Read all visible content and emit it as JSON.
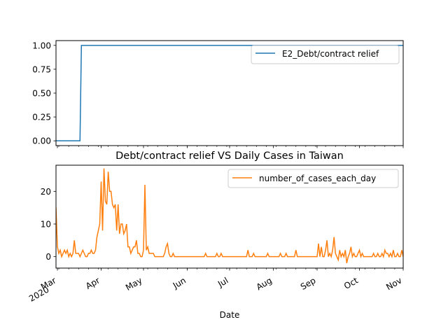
{
  "chart_data": [
    {
      "type": "line",
      "title": "",
      "xlabel": "",
      "ylabel": "",
      "ylim": [
        -0.05,
        1.05
      ],
      "yticks": [
        0.0,
        0.25,
        0.5,
        0.75,
        1.0
      ],
      "ytick_labels": [
        "0.00",
        "0.25",
        "0.50",
        "0.75",
        "1.00"
      ],
      "xlim": [
        "2020-02-29",
        "2020-11-01"
      ],
      "grid": false,
      "legend_position": "upper-right",
      "series": [
        {
          "name": "E2_Debt/contract relief",
          "color": "#1f77b4",
          "x": [
            "2020-02-29",
            "2020-03-17",
            "2020-03-18",
            "2020-11-01"
          ],
          "y": [
            0,
            0,
            1,
            1
          ]
        }
      ]
    },
    {
      "type": "line",
      "title": "Debt/contract relief VS Daily Cases in Taiwan",
      "xlabel": "Date",
      "ylabel": "",
      "ylim": [
        -3.5,
        28
      ],
      "yticks": [
        0,
        10,
        20
      ],
      "ytick_labels": [
        "0",
        "10",
        "20"
      ],
      "xlim": [
        "2020-02-29",
        "2020-11-01"
      ],
      "xticks": [
        "2020-03-01",
        "2020-04-01",
        "2020-05-01",
        "2020-06-01",
        "2020-07-01",
        "2020-08-01",
        "2020-09-01",
        "2020-10-01",
        "2020-11-01"
      ],
      "xtick_labels": [
        "Mar\n2020",
        "Apr",
        "May",
        "Jun",
        "Jul",
        "Aug",
        "Sep",
        "Oct",
        "Nov"
      ],
      "grid": false,
      "legend_position": "upper-right",
      "series": [
        {
          "name": "number_of_cases_each_day",
          "color": "#ff7f0e",
          "start_date": "2020-02-29",
          "values": [
            15,
            3,
            1,
            2,
            0,
            1,
            2,
            1,
            2,
            0,
            1,
            0,
            1,
            5,
            1,
            1,
            1,
            0,
            1,
            2,
            1,
            0,
            0,
            1,
            1,
            2,
            1,
            1,
            2,
            6,
            8,
            10,
            23,
            8,
            27,
            17,
            16,
            26,
            20,
            20,
            16,
            15,
            16,
            8,
            16,
            7,
            10,
            10,
            7,
            8,
            10,
            3,
            3,
            1,
            2,
            3,
            3,
            5,
            1,
            1,
            0,
            0,
            2,
            22,
            2,
            3,
            1,
            1,
            1,
            1,
            0,
            0,
            0,
            0,
            0,
            0,
            0,
            1,
            3,
            4,
            1,
            0,
            0,
            1,
            0,
            0,
            0,
            0,
            0,
            0,
            0,
            0,
            0,
            0,
            0,
            0,
            0,
            0,
            0,
            0,
            0,
            0,
            0,
            0,
            0,
            0,
            1,
            0,
            0,
            0,
            0,
            0,
            0,
            0,
            1,
            0,
            0,
            1,
            0,
            0,
            0,
            0,
            0,
            0,
            0,
            0,
            0,
            0,
            0,
            0,
            0,
            0,
            0,
            0,
            0,
            0,
            2,
            0,
            0,
            0,
            1,
            0,
            0,
            0,
            0,
            0,
            0,
            0,
            0,
            0,
            1,
            0,
            0,
            0,
            0,
            0,
            0,
            0,
            0,
            1,
            0,
            0,
            0,
            1,
            0,
            0,
            0,
            0,
            0,
            0,
            2,
            0,
            0,
            0,
            0,
            0,
            0,
            0,
            0,
            0,
            0,
            0,
            0,
            0,
            0,
            0,
            4,
            0,
            3,
            0,
            0,
            2,
            5,
            0,
            1,
            0,
            2,
            6,
            1,
            0,
            -1,
            2,
            0,
            1,
            0,
            2,
            -2,
            0,
            1,
            3,
            0,
            1,
            0,
            0,
            1,
            2,
            0,
            1,
            0,
            0,
            0,
            0,
            0,
            0,
            0,
            1,
            0,
            0,
            1,
            0,
            0,
            1,
            0,
            2,
            1,
            1,
            0,
            1,
            0,
            2,
            0,
            0,
            1,
            0,
            0,
            2,
            0,
            3,
            1,
            3,
            0,
            2,
            0,
            1,
            0,
            0,
            1,
            0,
            0,
            3,
            0,
            1,
            0,
            0,
            1,
            0,
            0,
            1,
            0,
            3,
            1,
            2,
            0,
            1,
            0,
            0,
            4,
            0,
            3,
            1,
            0,
            5,
            3,
            0,
            4,
            0,
            1,
            0,
            0,
            0,
            3,
            1,
            2
          ]
        }
      ]
    }
  ]
}
